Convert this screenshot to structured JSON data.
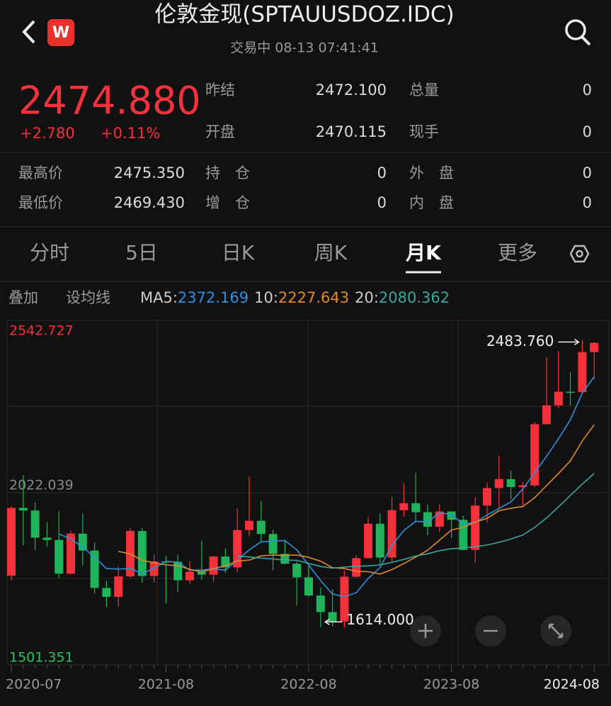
{
  "header": {
    "title": "伦敦金现(SPTAUUSDOZ.IDC)",
    "status": "交易中 08-13 07:41:41",
    "logo": "W"
  },
  "quote": {
    "price": "2474.880",
    "change": "+2.780",
    "change_pct": "+0.11%",
    "stats": [
      {
        "label": "昨结",
        "value": "2472.100"
      },
      {
        "label": "总量",
        "value": "0"
      },
      {
        "label": "开盘",
        "value": "2470.115"
      },
      {
        "label": "现手",
        "value": "0"
      },
      {
        "label": "最高价",
        "value": "2475.350"
      },
      {
        "label": "持　仓",
        "value": "0"
      },
      {
        "label": "外　盘",
        "value": "0"
      },
      {
        "label": "最低价",
        "value": "2469.430"
      },
      {
        "label": "增　仓",
        "value": "0"
      },
      {
        "label": "内　盘",
        "value": "0"
      }
    ]
  },
  "tabs": {
    "items": [
      "分时",
      "5日",
      "日K",
      "周K",
      "月K",
      "更多"
    ],
    "selected": 4
  },
  "indicators": {
    "overlay": "叠加",
    "set_ma": "设均线",
    "ma": [
      {
        "name": "MA5:",
        "value": "2372.169",
        "color": "#2f8fdc"
      },
      {
        "name": "10:",
        "value": "2227.643",
        "color": "#e08a2a"
      },
      {
        "name": "20:",
        "value": "2080.362",
        "color": "#3aa6a0"
      }
    ]
  },
  "chart_data": {
    "type": "candlestick",
    "x": [
      "2020-07",
      null,
      null,
      null,
      null,
      null,
      null,
      null,
      null,
      null,
      null,
      null,
      null,
      "2021-08",
      null,
      null,
      null,
      null,
      null,
      null,
      null,
      null,
      null,
      null,
      null,
      "2022-08",
      null,
      null,
      null,
      null,
      null,
      null,
      null,
      null,
      null,
      null,
      null,
      "2023-08",
      null,
      null,
      null,
      null,
      null,
      null,
      null,
      null,
      null,
      null,
      null,
      "2024-08"
    ],
    "open": [
      1771,
      1976,
      1968,
      1886,
      1879,
      1777,
      1898,
      1847,
      1734,
      1707,
      1769,
      1906,
      1770,
      1814,
      1813,
      1757,
      1783,
      1774,
      1829,
      1796,
      1909,
      1937,
      1897,
      1837,
      1807,
      1766,
      1711,
      1661,
      1633,
      1768,
      1824,
      1928,
      1826,
      1969,
      1990,
      1963,
      1919,
      1965,
      1940,
      1849,
      1983,
      2036,
      2063,
      2039,
      2044,
      2229,
      2286,
      2327,
      2326,
      2447
    ],
    "high": [
      1981,
      2075,
      1992,
      1933,
      1966,
      1906,
      1959,
      1871,
      1755,
      1798,
      1916,
      1916,
      1834,
      1831,
      1834,
      1814,
      1877,
      1831,
      1853,
      1974,
      2070,
      1998,
      1910,
      1879,
      1814,
      1808,
      1735,
      1730,
      1786,
      1833,
      1949,
      1960,
      2010,
      2049,
      2082,
      1985,
      1987,
      1966,
      1953,
      2009,
      2052,
      2135,
      2088,
      2054,
      2236,
      2432,
      2450,
      2387,
      2483.76,
      2477
    ],
    "low": [
      1757,
      1863,
      1848,
      1860,
      1764,
      1775,
      1802,
      1717,
      1676,
      1677,
      1765,
      1750,
      1750,
      1687,
      1721,
      1746,
      1759,
      1753,
      1780,
      1781,
      1890,
      1872,
      1787,
      1805,
      1681,
      1709,
      1615,
      1618,
      1614,
      1765,
      1823,
      1804,
      1810,
      1949,
      1932,
      1893,
      1903,
      1885,
      1847,
      1810,
      1931,
      1973,
      2002,
      1984,
      2039,
      2229,
      2277,
      2286,
      2319,
      2364
    ],
    "close": [
      1976,
      1968,
      1886,
      1879,
      1777,
      1898,
      1847,
      1734,
      1707,
      1769,
      1906,
      1770,
      1814,
      1813,
      1757,
      1783,
      1774,
      1829,
      1796,
      1909,
      1937,
      1897,
      1837,
      1807,
      1766,
      1711,
      1661,
      1633,
      1768,
      1824,
      1928,
      1826,
      1969,
      1990,
      1963,
      1919,
      1965,
      1940,
      1849,
      1983,
      2036,
      2063,
      2039,
      2044,
      2229,
      2286,
      2327,
      2326,
      2447,
      2474.88
    ],
    "up_color": "#f5323c",
    "down_color": "#1fb35a",
    "ylim": [
      1501.351,
      2542.727
    ],
    "yticks": [
      1501.351,
      2022.039,
      2542.727
    ],
    "ytick_colors": [
      "#2fc25b",
      "#8a8a8a",
      "#f5323c"
    ],
    "annotations": {
      "max": {
        "value": 2483.76,
        "label": "2483.760"
      },
      "min": {
        "value": 1614,
        "label": "1614.000"
      }
    }
  }
}
